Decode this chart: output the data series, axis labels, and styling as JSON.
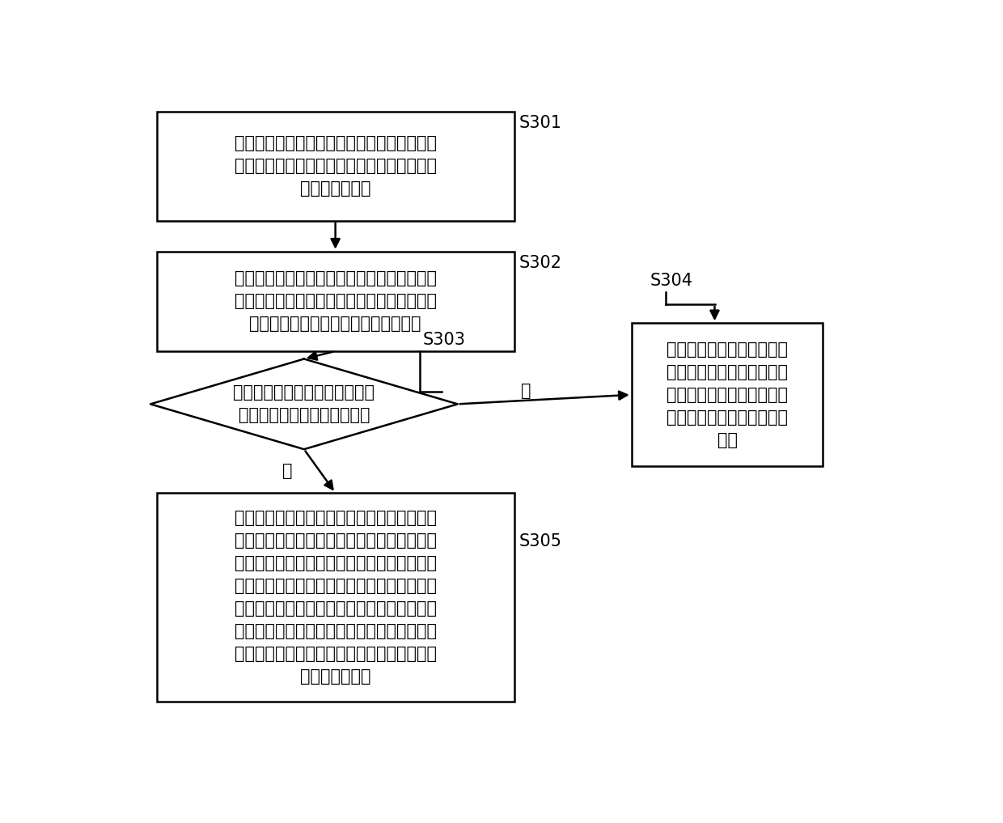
{
  "background_color": "#ffffff",
  "s301_text": "在每个预定周期内，从第二类统计信息中，获\n取在当前周期内进入目标区域的第二车辆的车\n辆标识和时间点",
  "s302_text": "在每个预定周期的结束时刻，从所获取的第二\n车辆标识和时间点中，确定每一第二车辆的车\n辆标识和该车辆标识对应的最晚时间点",
  "s303_text": "在每个预定周期的结束时刻，判\n断是否存储有第一类统计信息",
  "s304_text": "分别将所获取的每一第二车\n辆的车辆标识和该车辆标识\n对应的最晚时间点作为一条\n统计条目，得到第一类统计\n信息",
  "s305_text": "针对第一类统计信息中包含所获取的第二车辆\n的车辆标识的每一统计条目，将该统计条目中\n的时间点更新为：该统计条目中车辆标识所对\n应的最晚时间点；针对车辆标识未包含第一类\n统计信息中的每一第二车辆，将该第二车辆的\n车辆标识和所对应最晚时间点作为一条统计条\n目，添加到第一类统计信息中，得到更新后的\n第一类统计信息",
  "label_no": "否",
  "label_yes": "是",
  "labels": [
    "S301",
    "S302",
    "S303",
    "S304",
    "S305"
  ],
  "line_color": "#000000",
  "text_color": "#000000",
  "font_size": 15
}
